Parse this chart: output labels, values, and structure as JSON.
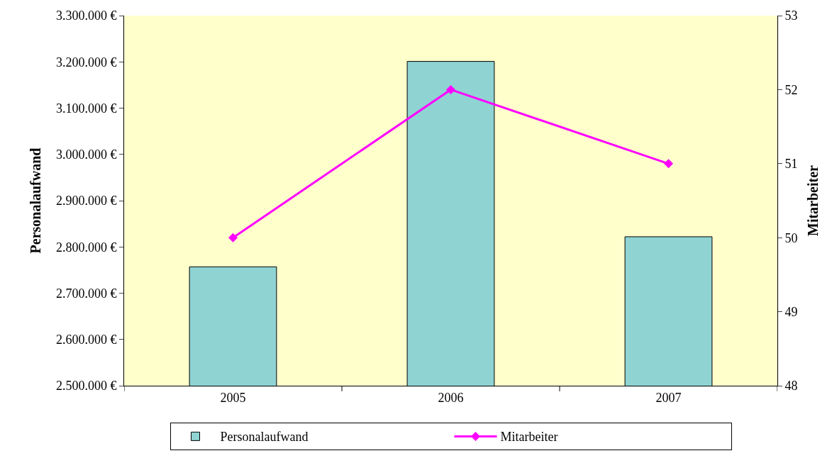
{
  "chart_data": {
    "type": "bar",
    "categories": [
      "2005",
      "2006",
      "2007"
    ],
    "ylabel": "Personalaufwand",
    "y2label": "Mitarbeiter",
    "series": [
      {
        "name": "Personalaufwand",
        "color": "#8fd3d3",
        "values": [
          2757000,
          3201000,
          2822000
        ]
      },
      {
        "name": "Mitarbeiter",
        "type": "line",
        "axis": "y2",
        "color": "#ff00ff",
        "marker": "diamond",
        "values": [
          50,
          52,
          51
        ]
      }
    ],
    "ylim": [
      2500000,
      3300000
    ],
    "yticks": [
      {
        "value": 2500000,
        "label": "2.500.000 €"
      },
      {
        "value": 2600000,
        "label": "2.600.000 €"
      },
      {
        "value": 2700000,
        "label": "2.700.000 €"
      },
      {
        "value": 2800000,
        "label": "2.800.000 €"
      },
      {
        "value": 2900000,
        "label": "2.900.000 €"
      },
      {
        "value": 3000000,
        "label": "3.000.000 €"
      },
      {
        "value": 3100000,
        "label": "3.100.000 €"
      },
      {
        "value": 3200000,
        "label": "3.200.000 €"
      },
      {
        "value": 3300000,
        "label": "3.300.000 €"
      }
    ],
    "y2lim": [
      48,
      53
    ],
    "y2ticks": [
      48,
      49,
      50,
      51,
      52,
      53
    ],
    "grid": false,
    "legend": "bottom"
  }
}
